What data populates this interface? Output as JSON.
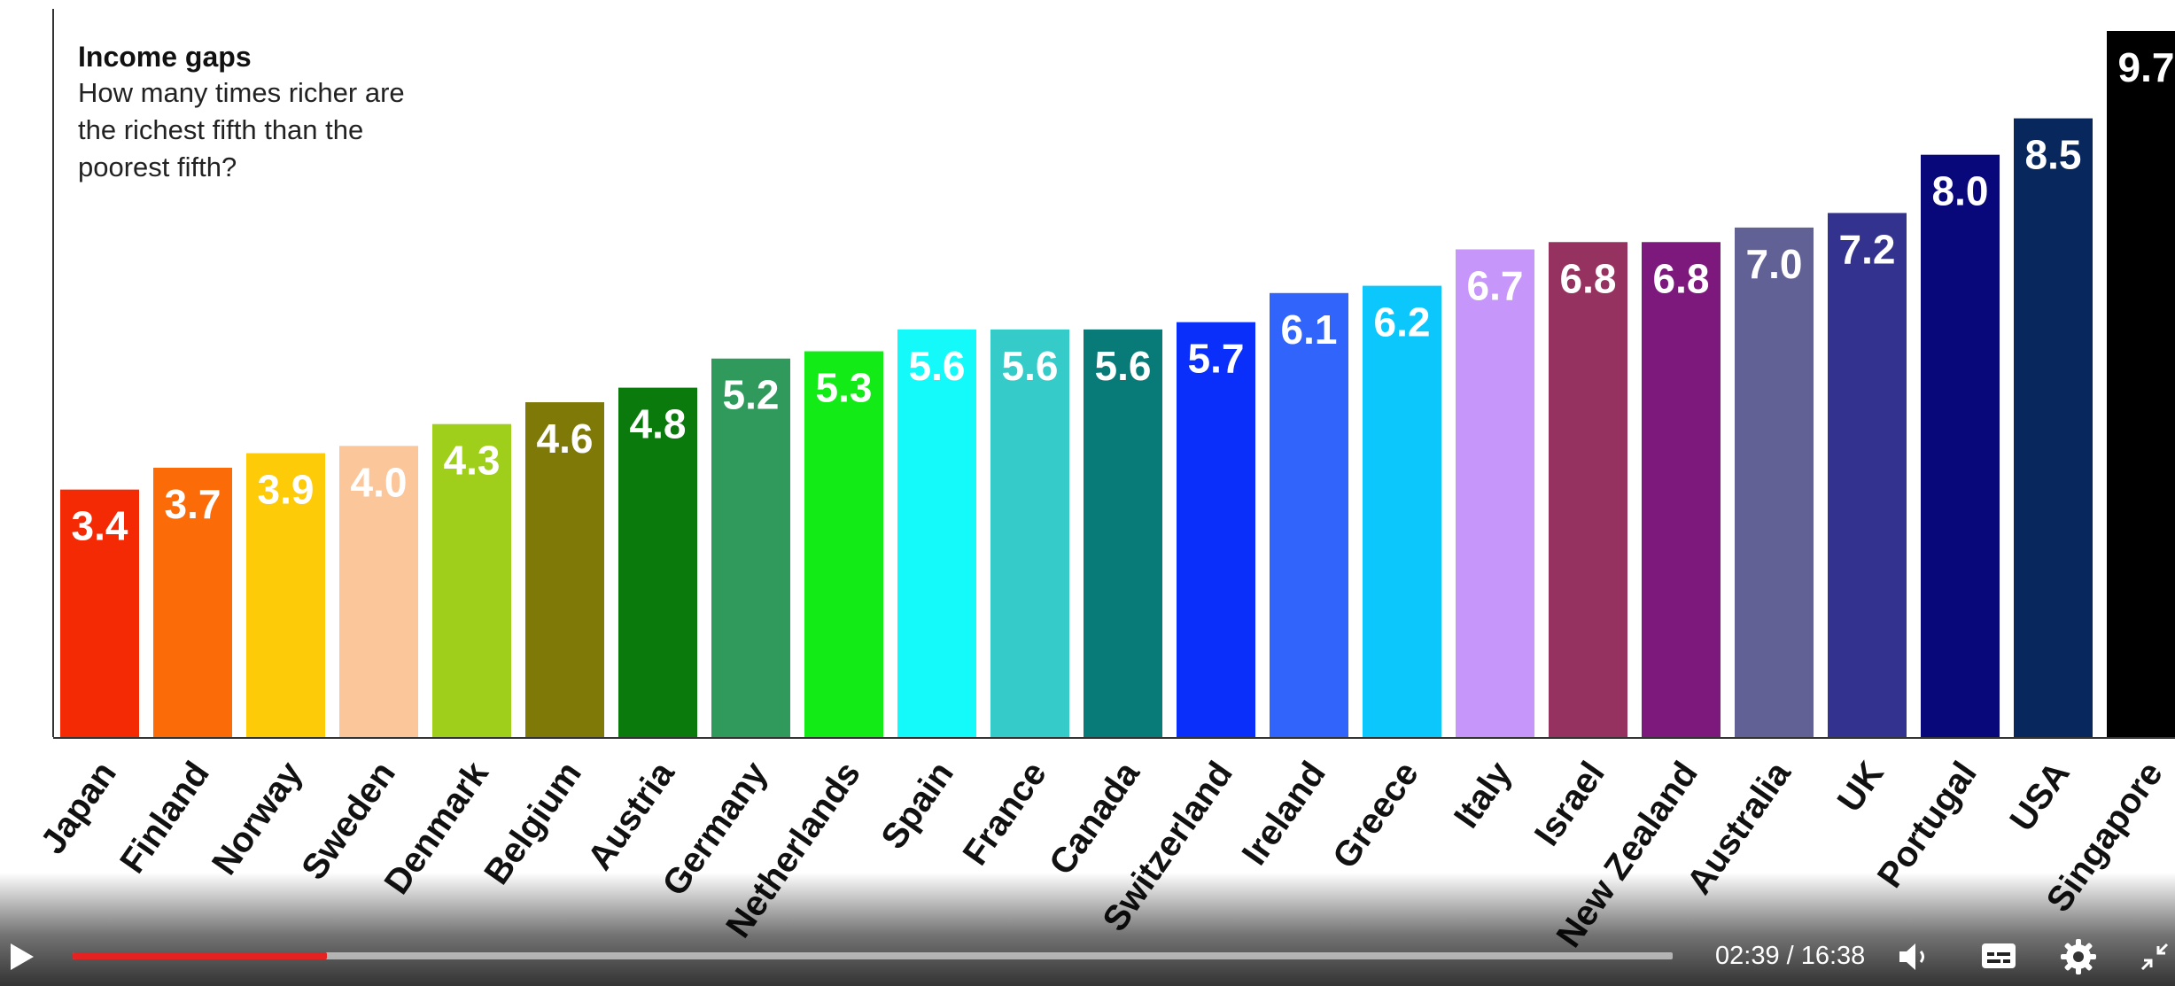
{
  "chart_data": {
    "type": "bar",
    "title": "Income gaps",
    "subtitle": "How many times richer are the richest fifth than the poorest fifth?",
    "categories": [
      "Japan",
      "Finland",
      "Norway",
      "Sweden",
      "Denmark",
      "Belgium",
      "Austria",
      "Germany",
      "Netherlands",
      "Spain",
      "France",
      "Canada",
      "Switzerland",
      "Ireland",
      "Greece",
      "Italy",
      "Israel",
      "New Zealand",
      "Australia",
      "UK",
      "Portugal",
      "USA",
      "Singapore"
    ],
    "values": [
      3.4,
      3.7,
      3.9,
      4.0,
      4.3,
      4.6,
      4.8,
      5.2,
      5.3,
      5.6,
      5.6,
      5.6,
      5.7,
      6.1,
      6.2,
      6.7,
      6.8,
      6.8,
      7.0,
      7.2,
      8.0,
      8.5,
      9.7
    ],
    "value_labels": [
      "3.4",
      "3.7",
      "3.9",
      "4.0",
      "4.3",
      "4.6",
      "4.8",
      "5.2",
      "5.3",
      "5.6",
      "5.6",
      "5.6",
      "5.7",
      "6.1",
      "6.2",
      "6.7",
      "6.8",
      "6.8",
      "7.0",
      "7.2",
      "8.0",
      "8.5",
      "9.7"
    ],
    "colors": [
      "#f42a05",
      "#fb6b08",
      "#fdcb07",
      "#fbc69a",
      "#9fcf1b",
      "#7f7a08",
      "#0a7a0c",
      "#2f9a5c",
      "#13eb17",
      "#14fafa",
      "#35cbc8",
      "#087b78",
      "#0a2ffb",
      "#3164fb",
      "#0bc7fb",
      "#c696fb",
      "#96325f",
      "#7d187d",
      "#626196",
      "#33338f",
      "#08087b",
      "#07275d",
      "#000000"
    ],
    "ylim": [
      0,
      10
    ],
    "xlabel": "",
    "ylabel": "",
    "grid": false,
    "legend": "none"
  },
  "player": {
    "time_current": "02:39",
    "time_total": "16:38",
    "time_display": "02:39 / 16:38",
    "progress": 0.159,
    "icons": [
      "play-icon",
      "volume-icon",
      "captions-icon",
      "settings-icon",
      "exit-fullscreen-icon"
    ]
  }
}
